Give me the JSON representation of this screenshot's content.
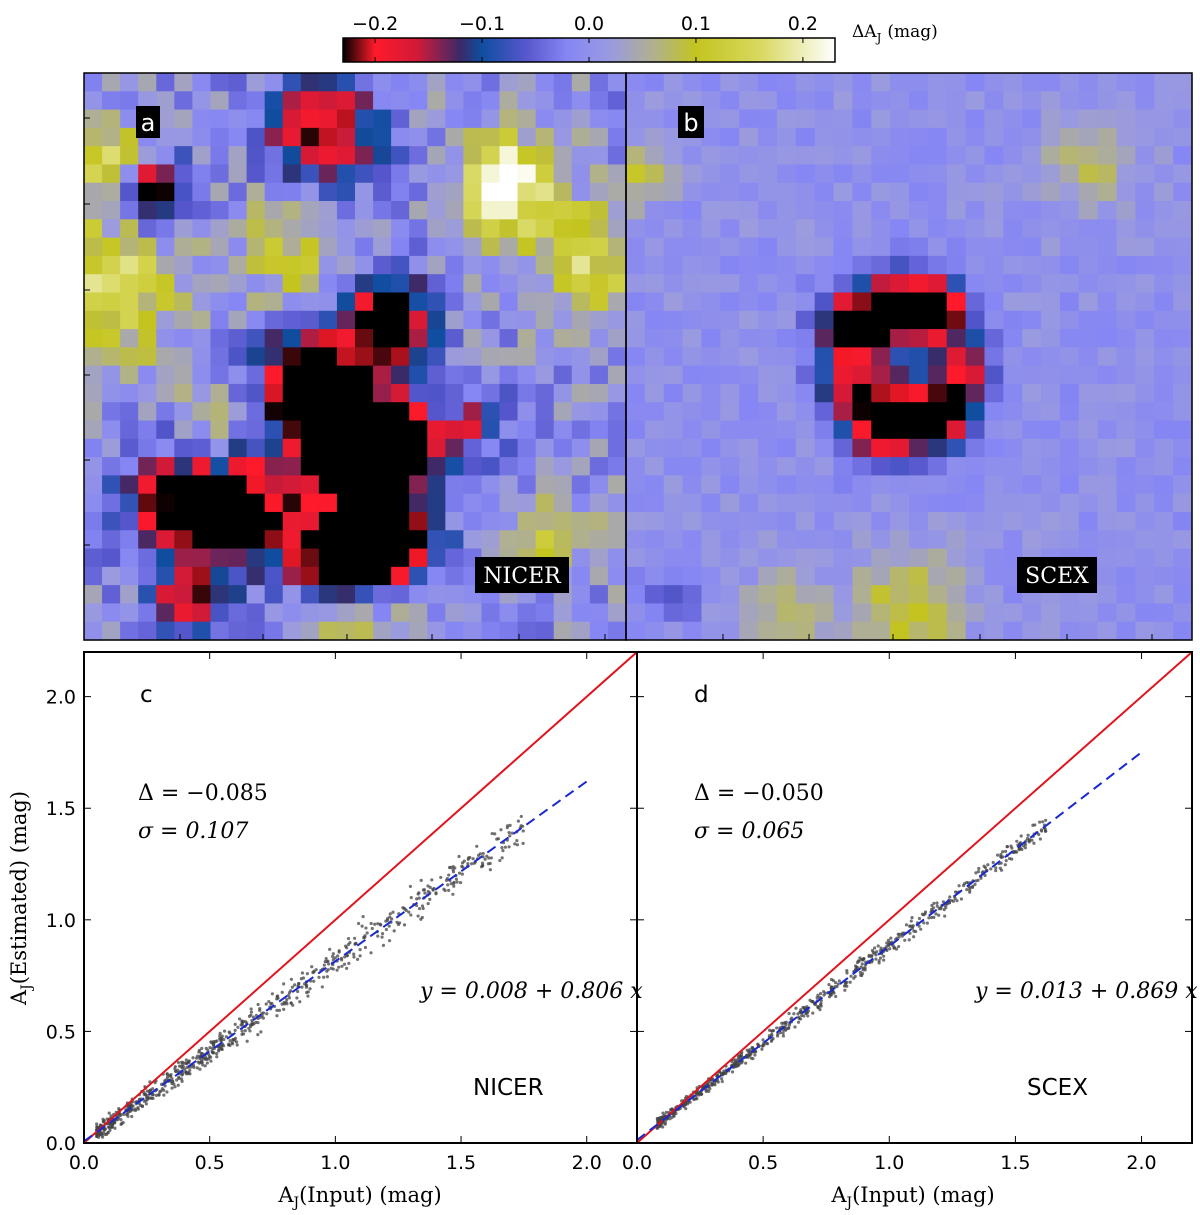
{
  "colorbar": {
    "label": "ΔA",
    "label_sub": "J",
    "label_unit": "(mag)",
    "ticks": [
      -0.2,
      -0.1,
      0.0,
      0.1,
      0.2
    ],
    "tick_labels": [
      "−0.2",
      "−0.1",
      "0.0",
      "0.1",
      "0.2"
    ],
    "range": [
      -0.23,
      0.23
    ],
    "stops": [
      {
        "v": -0.23,
        "color": "#000000"
      },
      {
        "v": -0.2,
        "color": "#ff1a2a"
      },
      {
        "v": -0.16,
        "color": "#d01a38"
      },
      {
        "v": -0.12,
        "color": "#3a2a68"
      },
      {
        "v": -0.1,
        "color": "#0f4ea0"
      },
      {
        "v": -0.06,
        "color": "#5656cc"
      },
      {
        "v": -0.02,
        "color": "#8686f4"
      },
      {
        "v": 0.02,
        "color": "#9a9ae0"
      },
      {
        "v": 0.06,
        "color": "#b0b090"
      },
      {
        "v": 0.1,
        "color": "#c4c420"
      },
      {
        "v": 0.16,
        "color": "#d8d860"
      },
      {
        "v": 0.23,
        "color": "#ffffff"
      }
    ]
  },
  "maps": [
    {
      "letter": "a",
      "method": "NICER"
    },
    {
      "letter": "b",
      "method": "SCEX"
    }
  ],
  "chart_data": [
    {
      "type": "heatmap",
      "panel": "a",
      "title": "NICER",
      "description": "Residual extinction map ΔA_J (mag), 30 x 31 pixels, colour scale -0.23 to 0.23",
      "blobs_dAJ": [
        {
          "cx": 0.42,
          "cy": 0.55,
          "amp": -0.45,
          "r": 0.06
        },
        {
          "cx": 0.5,
          "cy": 0.66,
          "amp": -0.4,
          "r": 0.06
        },
        {
          "cx": 0.56,
          "cy": 0.44,
          "amp": -0.36,
          "r": 0.05
        },
        {
          "cx": 0.58,
          "cy": 0.66,
          "amp": -0.35,
          "r": 0.05
        },
        {
          "cx": 0.3,
          "cy": 0.77,
          "amp": -0.3,
          "r": 0.07
        },
        {
          "cx": 0.48,
          "cy": 0.85,
          "amp": -0.4,
          "r": 0.06
        },
        {
          "cx": 0.58,
          "cy": 0.82,
          "amp": -0.3,
          "r": 0.05
        },
        {
          "cx": 0.16,
          "cy": 0.76,
          "amp": -0.22,
          "r": 0.06
        },
        {
          "cx": 0.44,
          "cy": 0.1,
          "amp": -0.24,
          "r": 0.07
        },
        {
          "cx": 0.13,
          "cy": 0.21,
          "amp": -0.28,
          "r": 0.04
        },
        {
          "cx": 0.2,
          "cy": 0.92,
          "amp": -0.18,
          "r": 0.05
        },
        {
          "cx": 0.72,
          "cy": 0.62,
          "amp": -0.14,
          "r": 0.04
        },
        {
          "cx": 0.78,
          "cy": 0.2,
          "amp": 0.25,
          "r": 0.06
        },
        {
          "cx": 0.05,
          "cy": 0.38,
          "amp": 0.17,
          "r": 0.08
        },
        {
          "cx": 0.04,
          "cy": 0.16,
          "amp": 0.15,
          "r": 0.05
        },
        {
          "cx": 0.93,
          "cy": 0.33,
          "amp": 0.14,
          "r": 0.07
        },
        {
          "cx": 0.48,
          "cy": 0.97,
          "amp": 0.13,
          "r": 0.07
        },
        {
          "cx": 0.38,
          "cy": 0.31,
          "amp": 0.09,
          "r": 0.07
        },
        {
          "cx": 0.25,
          "cy": 0.62,
          "amp": 0.07,
          "r": 0.05
        },
        {
          "cx": 0.87,
          "cy": 0.82,
          "amp": 0.1,
          "r": 0.05
        }
      ],
      "noise": 0.05,
      "seed": 7
    },
    {
      "type": "heatmap",
      "panel": "b",
      "title": "SCEX",
      "description": "Residual extinction map ΔA_J (mag), 30 x 31 pixels, colour scale -0.23 to 0.23",
      "blobs_dAJ": [
        {
          "cx": 0.41,
          "cy": 0.45,
          "amp": -0.3,
          "r": 0.045
        },
        {
          "cx": 0.55,
          "cy": 0.42,
          "amp": -0.28,
          "r": 0.04
        },
        {
          "cx": 0.46,
          "cy": 0.61,
          "amp": -0.3,
          "r": 0.05
        },
        {
          "cx": 0.56,
          "cy": 0.6,
          "amp": -0.26,
          "r": 0.04
        },
        {
          "cx": 0.48,
          "cy": 0.4,
          "amp": -0.16,
          "r": 0.04
        },
        {
          "cx": 0.6,
          "cy": 0.52,
          "amp": -0.16,
          "r": 0.035
        },
        {
          "cx": 0.38,
          "cy": 0.55,
          "amp": -0.12,
          "r": 0.035
        },
        {
          "cx": 0.5,
          "cy": 0.94,
          "amp": 0.1,
          "r": 0.07
        },
        {
          "cx": 0.28,
          "cy": 0.95,
          "amp": 0.08,
          "r": 0.05
        },
        {
          "cx": 0.82,
          "cy": 0.16,
          "amp": 0.07,
          "r": 0.06
        },
        {
          "cx": 0.02,
          "cy": 0.18,
          "amp": 0.09,
          "r": 0.04
        },
        {
          "cx": 0.08,
          "cy": 0.92,
          "amp": -0.08,
          "r": 0.03
        }
      ],
      "noise": 0.022,
      "seed": 19
    },
    {
      "type": "scatter",
      "panel": "c",
      "title": "NICER",
      "xlabel": "A_J (Input) (mag)",
      "ylabel": "A_J (Estimated) (mag)",
      "xlim": [
        0.0,
        2.2
      ],
      "ylim": [
        0.0,
        2.2
      ],
      "xticks": [
        0.0,
        0.5,
        1.0,
        1.5,
        2.0
      ],
      "yticks": [
        0.0,
        0.5,
        1.0,
        1.5,
        2.0
      ],
      "stats": {
        "Delta": "−0.085",
        "sigma": "0.107"
      },
      "fit": {
        "intercept": 0.008,
        "slope": 0.806,
        "label": "y = 0.008 + 0.806 x",
        "x_range": [
          0.0,
          2.0
        ]
      },
      "one_to_one": true,
      "n_points": 700,
      "point_model": {
        "x_range": [
          0.05,
          1.75
        ],
        "scatter": 0.07,
        "seed": 3
      }
    },
    {
      "type": "scatter",
      "panel": "d",
      "title": "SCEX",
      "xlabel": "A_J (Input) (mag)",
      "ylabel": "A_J (Estimated) (mag)",
      "xlim": [
        0.0,
        2.2
      ],
      "ylim": [
        0.0,
        2.2
      ],
      "xticks": [
        0.0,
        0.5,
        1.0,
        1.5,
        2.0
      ],
      "yticks": [
        0.0,
        0.5,
        1.0,
        1.5,
        2.0
      ],
      "stats": {
        "Delta": "−0.050",
        "sigma": "0.065"
      },
      "fit": {
        "intercept": 0.013,
        "slope": 0.869,
        "label": "y = 0.013 + 0.869 x",
        "x_range": [
          0.0,
          2.0
        ]
      },
      "one_to_one": true,
      "n_points": 700,
      "point_model": {
        "x_range": [
          0.08,
          1.62
        ],
        "scatter": 0.04,
        "seed": 11
      }
    }
  ],
  "panels_cd": [
    {
      "letter": "c",
      "method": "NICER",
      "delta_label": "Δ = −0.085",
      "sigma_label": "σ = 0.107",
      "fit_label": "y = 0.008 + 0.806 x"
    },
    {
      "letter": "d",
      "method": "SCEX",
      "delta_label": "Δ = −0.050",
      "sigma_label": "σ = 0.065",
      "fit_label": "y = 0.013 + 0.869 x"
    }
  ],
  "axes": {
    "xlabel_main": "A",
    "xlabel_sub": "J",
    "xlabel_rest": "(Input)  (mag)",
    "ylabel_main": "A",
    "ylabel_sub": "J",
    "ylabel_rest": "(Estimated)  (mag)",
    "xtick_labels": [
      "0.0",
      "0.5",
      "1.0",
      "1.5",
      "2.0"
    ],
    "ytick_labels": [
      "0.0",
      "0.5",
      "1.0",
      "1.5",
      "2.0"
    ]
  }
}
